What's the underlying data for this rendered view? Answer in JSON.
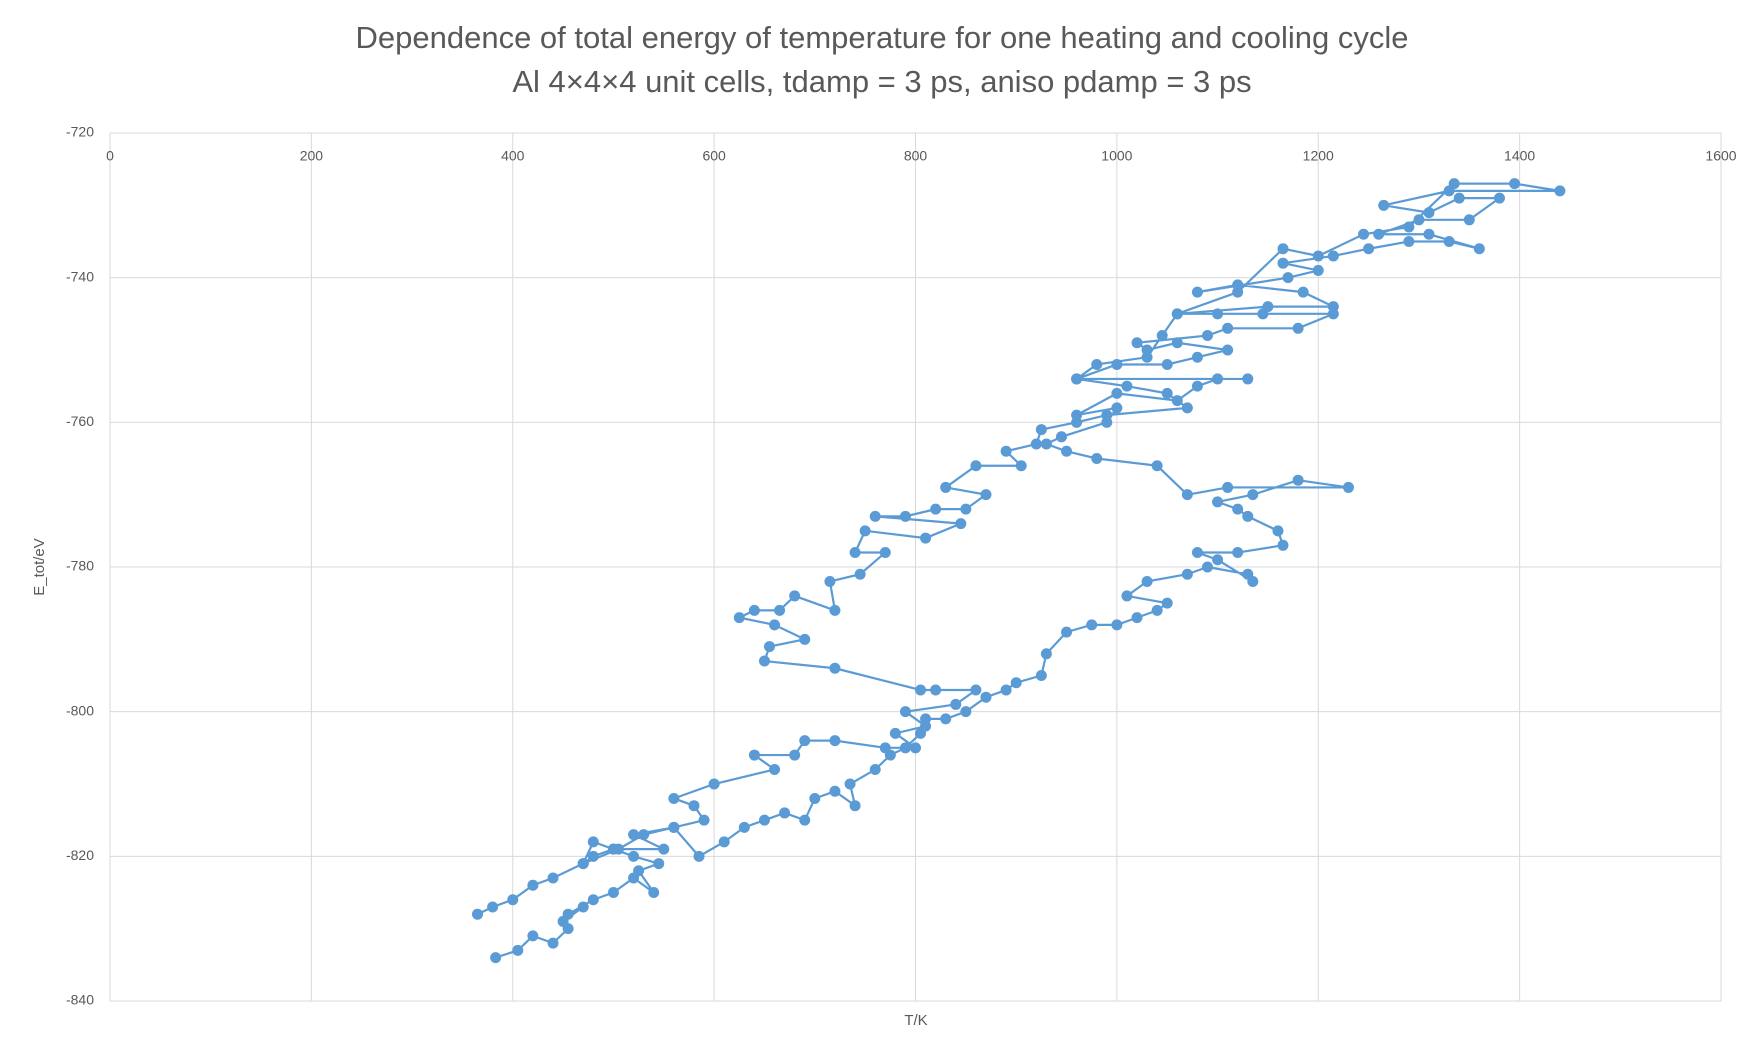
{
  "chart_data": {
    "type": "scatter",
    "title": "Dependence of total energy of temperature for one heating and cooling cycle",
    "subtitle": "Al 4×4×4 unit cells, tdamp = 3 ps, aniso pdamp = 3 ps",
    "x_label": "T/K",
    "y_label": "E_tot/eV",
    "color": "#5b9bd5",
    "grid": true,
    "lines": true,
    "xlim": [
      0,
      1600
    ],
    "xticks": [
      0,
      200,
      400,
      600,
      800,
      1000,
      1200,
      1400,
      1600
    ],
    "ylim": [
      -840,
      -720
    ],
    "yticks": [
      -840,
      -820,
      -800,
      -780,
      -760,
      -740,
      -720
    ],
    "x": [
      383,
      405,
      420,
      440,
      455,
      450,
      470,
      455,
      480,
      500,
      520,
      540,
      525,
      545,
      520,
      500,
      480,
      470,
      505,
      530,
      560,
      585,
      610,
      630,
      650,
      670,
      690,
      700,
      720,
      740,
      735,
      760,
      775,
      790,
      805,
      810,
      830,
      850,
      870,
      890,
      900,
      925,
      930,
      950,
      975,
      1000,
      1020,
      1040,
      1050,
      1010,
      1030,
      1070,
      1090,
      1130,
      1135,
      1100,
      1080,
      1120,
      1165,
      1160,
      1130,
      1120,
      1100,
      1135,
      1180,
      1230,
      1110,
      1070,
      1040,
      980,
      950,
      930,
      945,
      990,
      1000,
      960,
      1000,
      1060,
      1080,
      1100,
      1130,
      960,
      1000,
      1050,
      1080,
      1110,
      1060,
      1030,
      1020,
      1090,
      1110,
      1180,
      1215,
      1145,
      1100,
      1060,
      1150,
      1215,
      1185,
      1120,
      1080,
      1170,
      1200,
      1165,
      1215,
      1250,
      1290,
      1330,
      1360,
      1310,
      1260,
      1300,
      1350,
      1380,
      1340,
      1310,
      1265,
      1330,
      1440,
      1395,
      1335,
      1290,
      1245,
      1200,
      1165,
      1120,
      1060,
      1045,
      1030,
      980,
      960,
      1010,
      1050,
      1070,
      990,
      960,
      925,
      920,
      890,
      905,
      860,
      830,
      870,
      850,
      820,
      790,
      760,
      845,
      810,
      750,
      740,
      770,
      745,
      715,
      720,
      680,
      665,
      640,
      625,
      660,
      690,
      655,
      650,
      720,
      805,
      820,
      860,
      840,
      790,
      810,
      780,
      800,
      770,
      720,
      690,
      680,
      640,
      660,
      600,
      560,
      580,
      590,
      560,
      520,
      550,
      500,
      480,
      470,
      440,
      420,
      400,
      380,
      365
    ],
    "values": [
      -834,
      -833,
      -831,
      -832,
      -830,
      -829,
      -827,
      -828,
      -826,
      -825,
      -823,
      -825,
      -822,
      -821,
      -820,
      -819,
      -820,
      -821,
      -819,
      -817,
      -816,
      -820,
      -818,
      -816,
      -815,
      -814,
      -815,
      -812,
      -811,
      -813,
      -810,
      -808,
      -806,
      -805,
      -803,
      -801,
      -801,
      -800,
      -798,
      -797,
      -796,
      -795,
      -792,
      -789,
      -788,
      -788,
      -787,
      -786,
      -785,
      -784,
      -782,
      -781,
      -780,
      -781,
      -782,
      -779,
      -778,
      -778,
      -777,
      -775,
      -773,
      -772,
      -771,
      -770,
      -768,
      -769,
      -769,
      -770,
      -766,
      -765,
      -764,
      -763,
      -762,
      -760,
      -758,
      -759,
      -756,
      -757,
      -755,
      -754,
      -754,
      -754,
      -752,
      -752,
      -751,
      -750,
      -749,
      -750,
      -749,
      -748,
      -747,
      -747,
      -745,
      -745,
      -745,
      -745,
      -744,
      -744,
      -742,
      -741,
      -742,
      -740,
      -739,
      -738,
      -737,
      -736,
      -735,
      -735,
      -736,
      -734,
      -734,
      -732,
      -732,
      -729,
      -729,
      -731,
      -730,
      -728,
      -728,
      -727,
      -727,
      -733,
      -734,
      -737,
      -736,
      -742,
      -745,
      -748,
      -751,
      -752,
      -754,
      -755,
      -756,
      -758,
      -759,
      -760,
      -761,
      -763,
      -764,
      -766,
      -766,
      -769,
      -770,
      -772,
      -772,
      -773,
      -773,
      -774,
      -776,
      -775,
      -778,
      -778,
      -781,
      -782,
      -786,
      -784,
      -786,
      -786,
      -787,
      -788,
      -790,
      -791,
      -793,
      -794,
      -797,
      -797,
      -797,
      -799,
      -800,
      -802,
      -803,
      -805,
      -805,
      -804,
      -804,
      -806,
      -806,
      -808,
      -810,
      -812,
      -813,
      -815,
      -816,
      -817,
      -819,
      -819,
      -818,
      -821,
      -823,
      -824,
      -826,
      -827,
      -828
    ]
  }
}
